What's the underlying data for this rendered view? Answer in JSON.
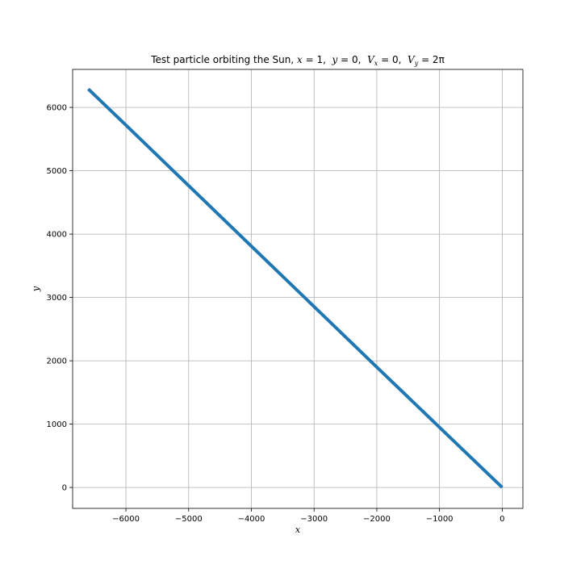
{
  "chart_data": {
    "type": "line",
    "title": {
      "prefix": "Test particle orbiting the Sun, ",
      "parts": [
        {
          "var": "x",
          "sub": "",
          "eq": " = 1,  "
        },
        {
          "var": "y",
          "sub": "",
          "eq": " = 0,  "
        },
        {
          "var": "V",
          "sub": "x",
          "eq": " = 0,  "
        },
        {
          "var": "V",
          "sub": "y",
          "eq": " = 2π"
        }
      ]
    },
    "xlabel": "x",
    "ylabel": "y",
    "xlim": [
      -6850,
      330
    ],
    "ylim": [
      -330,
      6600
    ],
    "xticks": [
      -6000,
      -5000,
      -4000,
      -3000,
      -2000,
      -1000,
      0
    ],
    "yticks": [
      0,
      1000,
      2000,
      3000,
      4000,
      5000,
      6000
    ],
    "xtick_labels": [
      "−6000",
      "−5000",
      "−4000",
      "−3000",
      "−2000",
      "−1000",
      "0"
    ],
    "ytick_labels": [
      "0",
      "1000",
      "2000",
      "3000",
      "4000",
      "5000",
      "6000"
    ],
    "grid": true,
    "series": [
      {
        "color": "#1f77b4",
        "x": [
          0,
          -1000,
          -2000,
          -3000,
          -4000,
          -5000,
          -6000,
          -6600
        ],
        "y": [
          0,
          950,
          1900,
          2855,
          3810,
          4765,
          5720,
          6290
        ]
      }
    ]
  }
}
